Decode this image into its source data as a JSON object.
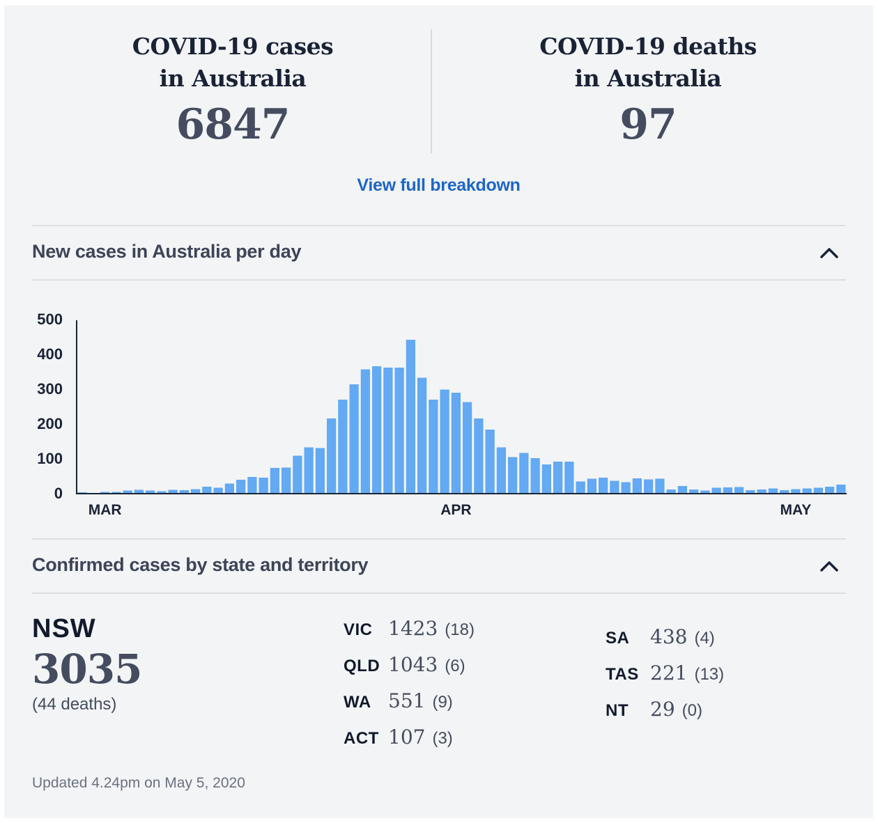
{
  "summary": {
    "cases_title_line1": "COVID-19 cases",
    "cases_title_line2": "in Australia",
    "cases_value": "6847",
    "deaths_title_line1": "COVID-19 deaths",
    "deaths_title_line2": "in Australia",
    "deaths_value": "97",
    "breakdown_link": "View full breakdown"
  },
  "sections": {
    "new_cases_title": "New cases in Australia per day",
    "states_title": "Confirmed cases by state and territory"
  },
  "chart_data": {
    "type": "bar",
    "title": "New cases in Australia per day",
    "xlabel": "",
    "ylabel": "",
    "ylim": [
      0,
      500
    ],
    "yticks": [
      500,
      400,
      300,
      200,
      100,
      0
    ],
    "xtick_labels": [
      {
        "label": "MAR",
        "index": 2
      },
      {
        "label": "APR",
        "index": 33
      },
      {
        "label": "MAY",
        "index": 63
      }
    ],
    "values": [
      2,
      0,
      3,
      3,
      7,
      9,
      7,
      5,
      9,
      8,
      11,
      18,
      15,
      27,
      38,
      46,
      44,
      72,
      73,
      107,
      131,
      129,
      214,
      268,
      312,
      355,
      364,
      360,
      360,
      440,
      331,
      268,
      297,
      288,
      261,
      214,
      182,
      131,
      103,
      115,
      100,
      82,
      90,
      90,
      33,
      41,
      44,
      35,
      31,
      42,
      39,
      41,
      10,
      20,
      10,
      7,
      15,
      16,
      17,
      8,
      10,
      13,
      8,
      11,
      13,
      15,
      18,
      24
    ]
  },
  "states": {
    "featured": {
      "name": "NSW",
      "cases": "3035",
      "deaths": "(44 deaths)"
    },
    "column1": [
      {
        "name": "VIC",
        "cases": "1423",
        "deaths": "(18)"
      },
      {
        "name": "QLD",
        "cases": "1043",
        "deaths": "(6)"
      },
      {
        "name": "WA",
        "cases": "551",
        "deaths": "(9)"
      },
      {
        "name": "ACT",
        "cases": "107",
        "deaths": "(3)"
      }
    ],
    "column2": [
      {
        "name": "SA",
        "cases": "438",
        "deaths": "(4)"
      },
      {
        "name": "TAS",
        "cases": "221",
        "deaths": "(13)"
      },
      {
        "name": "NT",
        "cases": "29",
        "deaths": "(0)"
      }
    ]
  },
  "footer": {
    "updated": "Updated 4.24pm on May 5, 2020"
  },
  "colors": {
    "bar": "#63a9f3",
    "axis": "#1a2336",
    "link": "#1d66c9"
  }
}
